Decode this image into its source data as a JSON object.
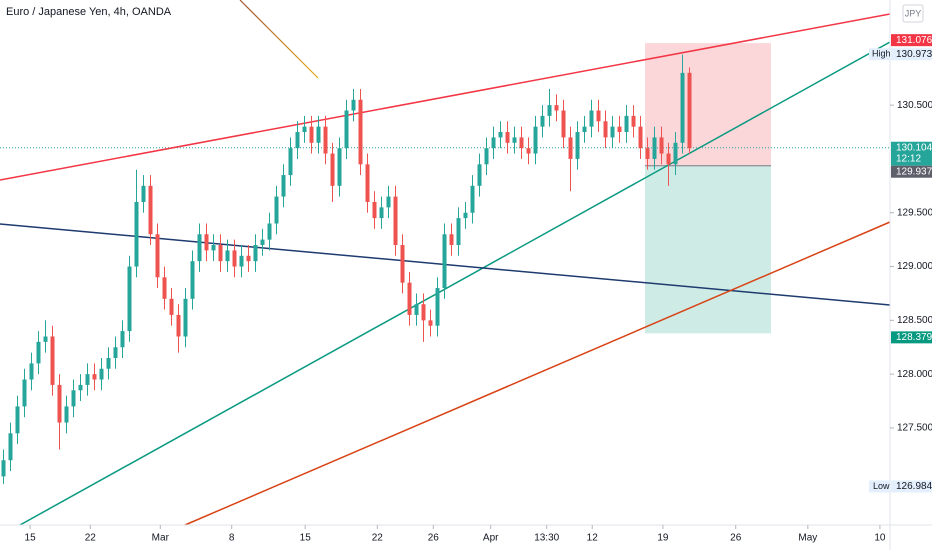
{
  "chart_data": {
    "type": "candlestick",
    "title": "Euro / Japanese Yen, 4h, OANDA",
    "currency": "JPY",
    "up_color": "#26a69a",
    "down_color": "#ef5350",
    "xlim": [
      -0.5,
      126.64
    ],
    "xticks": [
      {
        "value": 3.8,
        "label": "15"
      },
      {
        "value": 12.4,
        "label": "22"
      },
      {
        "value": 22.4,
        "label": "Mar"
      },
      {
        "value": 32.6,
        "label": "8"
      },
      {
        "value": 43.1,
        "label": "15"
      },
      {
        "value": 53.4,
        "label": "22"
      },
      {
        "value": 61.4,
        "label": "26"
      },
      {
        "value": 69.6,
        "label": "Apr"
      },
      {
        "value": 77.6,
        "label": "13:30"
      },
      {
        "value": 84.1,
        "label": "12"
      },
      {
        "value": 94.2,
        "label": "19"
      },
      {
        "value": 104.6,
        "label": "26"
      },
      {
        "value": 114.9,
        "label": "May"
      },
      {
        "value": 125.2,
        "label": "10"
      }
    ],
    "ylim": [
      126.598,
      131.477
    ],
    "yticks": [
      {
        "value": 127.5,
        "label": "127.500"
      },
      {
        "value": 128,
        "label": "128.000"
      },
      {
        "value": 128.5,
        "label": "128.500"
      },
      {
        "value": 129,
        "label": "129.000"
      },
      {
        "value": 129.5,
        "label": "129.500"
      },
      {
        "value": 130.5,
        "label": "130.500"
      }
    ],
    "high": {
      "label": "High",
      "value": 130.973
    },
    "low": {
      "label": "Low",
      "value": 126.984
    },
    "last_price": 130.104,
    "countdown": "12:12",
    "position": {
      "stop": 131.076,
      "entry": 129.937,
      "target": 128.379
    },
    "open": [
      127.05,
      127.2,
      127.45,
      127.7,
      127.95,
      128.1,
      128.3,
      128.35,
      127.9,
      127.55,
      127.7,
      127.85,
      127.9,
      128,
      127.95,
      128.05,
      128.15,
      128.25,
      128.4,
      129,
      129.6,
      129.75,
      129.3,
      128.9,
      128.7,
      128.55,
      128.35,
      128.7,
      129.05,
      129.3,
      129.15,
      129.2,
      129.05,
      129.15,
      129,
      129.1,
      129.05,
      129.2,
      129.25,
      129.4,
      129.65,
      129.85,
      130.1,
      130.25,
      130.3,
      130.15,
      130.3,
      130.05,
      129.75,
      130.1,
      130.45,
      130.55,
      129.95,
      129.6,
      129.45,
      129.55,
      129.65,
      129.2,
      128.85,
      128.55,
      128.65,
      128.5,
      128.45,
      128.8,
      129.3,
      129.2,
      129.45,
      129.5,
      129.75,
      129.95,
      130.1,
      130.2,
      130.25,
      130.15,
      130.2,
      130.1,
      130.05,
      130.3,
      130.4,
      130.5,
      130.45,
      130.2,
      130,
      130.25,
      130.3,
      130.45,
      130.35,
      130.2,
      130.3,
      130.25,
      130.4,
      130.3,
      130.1,
      130,
      130.2,
      130.05,
      129.95,
      130.15,
      130.8
    ],
    "high_values": [
      127.3,
      127.55,
      127.8,
      128.05,
      128.2,
      128.4,
      128.5,
      128.45,
      128,
      127.8,
      127.95,
      128,
      128.1,
      128.1,
      128.15,
      128.25,
      128.35,
      128.5,
      129.1,
      129.9,
      129.85,
      129.85,
      129.4,
      129,
      128.8,
      128.65,
      128.8,
      129.15,
      129.4,
      129.4,
      129.3,
      129.3,
      129.25,
      129.25,
      129.2,
      129.2,
      129.3,
      129.35,
      129.5,
      129.75,
      129.95,
      130.2,
      130.35,
      130.4,
      130.4,
      130.4,
      130.4,
      130.15,
      130.2,
      130.55,
      130.65,
      130.65,
      130.05,
      129.7,
      129.65,
      129.75,
      129.75,
      129.3,
      128.95,
      128.75,
      128.75,
      128.6,
      128.9,
      129.4,
      129.4,
      129.55,
      129.6,
      129.85,
      130.05,
      130.2,
      130.3,
      130.35,
      130.35,
      130.3,
      130.3,
      130.2,
      130.4,
      130.5,
      130.65,
      130.6,
      130.55,
      130.3,
      130.35,
      130.4,
      130.55,
      130.55,
      130.45,
      130.4,
      130.4,
      130.5,
      130.5,
      130.4,
      130.2,
      130.3,
      130.3,
      130.15,
      130.25,
      130.97,
      130.85
    ],
    "low_values": [
      126.98,
      127.1,
      127.35,
      127.6,
      127.85,
      128,
      128.2,
      127.8,
      127.3,
      127.45,
      127.6,
      127.75,
      127.8,
      127.85,
      127.85,
      127.95,
      128.05,
      128.15,
      128.3,
      128.9,
      129.5,
      129.2,
      128.8,
      128.6,
      128.45,
      128.2,
      128.25,
      128.6,
      128.95,
      129.05,
      129.05,
      128.95,
      128.95,
      128.9,
      128.9,
      128.95,
      128.95,
      129.1,
      129.15,
      129.3,
      129.55,
      129.75,
      130,
      130.15,
      130.05,
      130.05,
      129.95,
      129.6,
      129.65,
      130,
      130.35,
      129.85,
      129.5,
      129.35,
      129.35,
      129.45,
      129.1,
      128.75,
      128.45,
      128.45,
      128.3,
      128.35,
      128.35,
      128.7,
      129.1,
      129.1,
      129.35,
      129.4,
      129.65,
      129.85,
      130,
      130.1,
      130.05,
      130.05,
      130,
      129.95,
      129.95,
      130.2,
      130.3,
      130.35,
      130.1,
      129.7,
      129.9,
      130.15,
      130.2,
      130.25,
      130.1,
      130.1,
      130.15,
      130.15,
      130.2,
      130,
      129.9,
      129.9,
      129.95,
      129.75,
      129.85,
      130.05,
      130.05
    ],
    "close": [
      127.2,
      127.45,
      127.7,
      127.95,
      128.1,
      128.3,
      128.35,
      127.9,
      127.55,
      127.7,
      127.85,
      127.9,
      128,
      127.95,
      128.05,
      128.15,
      128.25,
      128.4,
      129,
      129.6,
      129.75,
      129.3,
      128.9,
      128.7,
      128.55,
      128.35,
      128.7,
      129.05,
      129.3,
      129.15,
      129.2,
      129.05,
      129.15,
      129,
      129.1,
      129.05,
      129.2,
      129.25,
      129.4,
      129.65,
      129.85,
      130.1,
      130.25,
      130.3,
      130.15,
      130.3,
      130.05,
      129.75,
      130.1,
      130.45,
      130.55,
      129.95,
      129.6,
      129.45,
      129.55,
      129.65,
      129.2,
      128.85,
      128.55,
      128.65,
      128.5,
      128.45,
      128.8,
      129.3,
      129.2,
      129.45,
      129.5,
      129.75,
      129.95,
      130.1,
      130.2,
      130.25,
      130.15,
      130.2,
      130.1,
      130.05,
      130.3,
      130.4,
      130.5,
      130.45,
      130.2,
      130,
      130.25,
      130.3,
      130.45,
      130.35,
      130.2,
      130.3,
      130.25,
      130.4,
      130.3,
      130.1,
      130,
      130.2,
      130.05,
      129.95,
      130.15,
      130.8,
      130.1
    ]
  }
}
